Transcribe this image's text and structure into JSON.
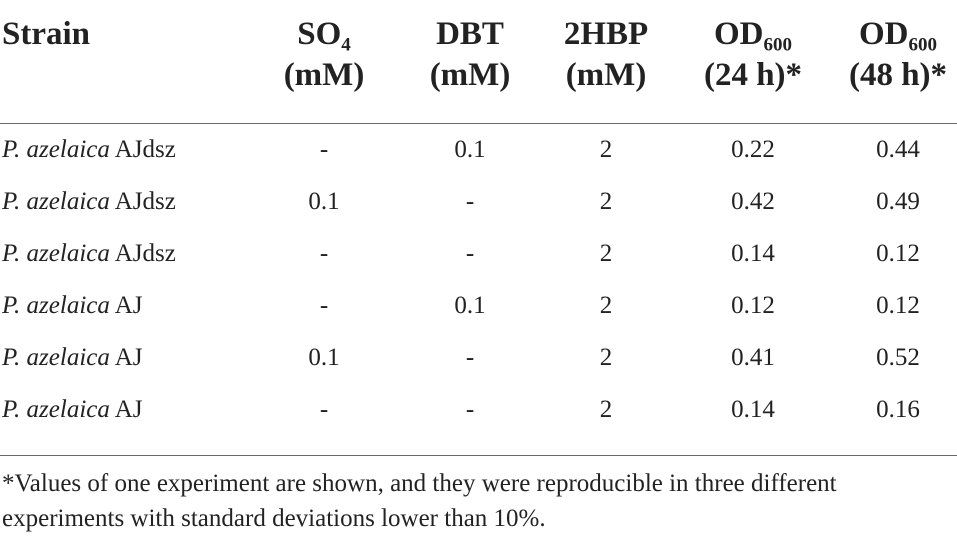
{
  "table": {
    "headers": {
      "strain": "Strain",
      "so4": {
        "main": "SO",
        "sub": "4",
        "unit": "(mM)"
      },
      "dbt": {
        "main": "DBT",
        "unit": "(mM)"
      },
      "hbp": {
        "main": "2HBP",
        "unit": "(mM)"
      },
      "od24": {
        "main": "OD",
        "sub": "600",
        "unit": "(24 h)*"
      },
      "od48": {
        "main": "OD",
        "sub": "600",
        "unit": "(48 h)*"
      }
    },
    "rows": [
      {
        "species": "P. azelaica",
        "strain": "AJdsz",
        "so4": "-",
        "dbt": "0.1",
        "hbp": "2",
        "od24": "0.22",
        "od48": "0.44"
      },
      {
        "species": "P. azelaica",
        "strain": "AJdsz",
        "so4": "0.1",
        "dbt": "-",
        "hbp": "2",
        "od24": "0.42",
        "od48": "0.49"
      },
      {
        "species": "P. azelaica",
        "strain": "AJdsz",
        "so4": "-",
        "dbt": "-",
        "hbp": "2",
        "od24": "0.14",
        "od48": "0.12"
      },
      {
        "species": "P. azelaica",
        "strain": "AJ",
        "so4": "-",
        "dbt": "0.1",
        "hbp": "2",
        "od24": "0.12",
        "od48": "0.12"
      },
      {
        "species": "P. azelaica",
        "strain": "AJ",
        "so4": "0.1",
        "dbt": "-",
        "hbp": "2",
        "od24": "0.41",
        "od48": "0.52"
      },
      {
        "species": "P. azelaica",
        "strain": "AJ",
        "so4": "-",
        "dbt": "-",
        "hbp": "2",
        "od24": "0.14",
        "od48": "0.16"
      }
    ],
    "footnote": "*Values of one experiment are shown, and they were reproducible in three different experiments with standard deviations lower than 10%."
  }
}
